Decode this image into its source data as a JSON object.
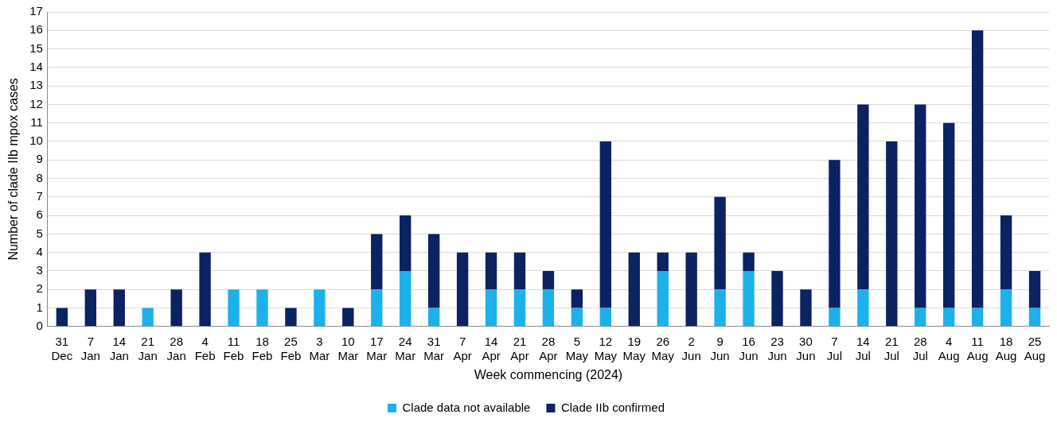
{
  "chart_data": {
    "type": "bar",
    "stacked": true,
    "xlabel": "Week commencing (2024)",
    "ylabel": "Number of clade IIb mpox cases",
    "categories": [
      "31 Dec",
      "7 Jan",
      "14 Jan",
      "21 Jan",
      "28 Jan",
      "4 Feb",
      "11 Feb",
      "18 Feb",
      "25 Feb",
      "3 Mar",
      "10 Mar",
      "17 Mar",
      "24 Mar",
      "31 Mar",
      "7 Apr",
      "14 Apr",
      "21 Apr",
      "28 Apr",
      "5 May",
      "12 May",
      "19 May",
      "26 May",
      "2 Jun",
      "9 Jun",
      "16 Jun",
      "23 Jun",
      "30 Jun",
      "7 Jul",
      "14 Jul",
      "21 Jul",
      "28 Jul",
      "4 Aug",
      "11 Aug",
      "18 Aug",
      "25 Aug"
    ],
    "series": [
      {
        "name": "Clade data not available",
        "color": "#1cb1ea",
        "values": [
          0,
          0,
          0,
          1,
          0,
          0,
          2,
          2,
          0,
          2,
          0,
          2,
          3,
          1,
          0,
          2,
          2,
          2,
          1,
          1,
          0,
          3,
          0,
          2,
          3,
          0,
          0,
          1,
          2,
          0,
          1,
          1,
          1,
          2,
          1
        ]
      },
      {
        "name": "Clade IIb confirmed",
        "color": "#0b2263",
        "values": [
          1,
          2,
          2,
          0,
          2,
          4,
          0,
          0,
          1,
          0,
          1,
          3,
          3,
          4,
          4,
          2,
          2,
          1,
          1,
          9,
          4,
          1,
          4,
          5,
          1,
          3,
          2,
          8,
          10,
          10,
          11,
          10,
          15,
          4,
          2
        ]
      }
    ],
    "ylim": [
      0,
      17
    ],
    "yticks": [
      0,
      1,
      2,
      3,
      4,
      5,
      6,
      7,
      8,
      9,
      10,
      11,
      12,
      13,
      14,
      15,
      16,
      17
    ],
    "grid": "y",
    "legend": "bottom"
  }
}
